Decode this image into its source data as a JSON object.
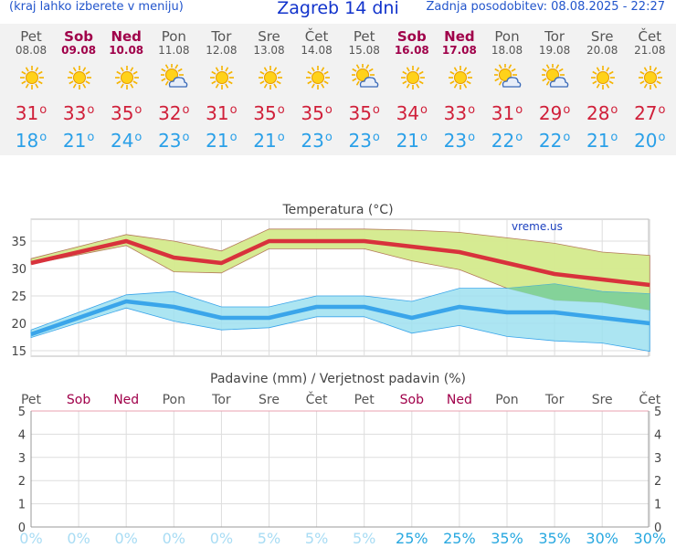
{
  "header": {
    "left_note": "(kraj lahko izberete v meniju)",
    "title": "Zagreb 14 dni",
    "updated": "Zadnja posodobitev: 08.08.2025 - 22:27"
  },
  "colors": {
    "max_line": "#d8323c",
    "min_line": "#3aa5ea",
    "max_band": "#d4ea8c",
    "min_band": "#9ee0f0",
    "overlap_band": "#7ecf8c",
    "weekend": "#a0004a"
  },
  "days": [
    {
      "name": "Pet",
      "date": "08.08",
      "weekend": false,
      "icon": "sun-icon",
      "max": "31",
      "min": "18"
    },
    {
      "name": "Sob",
      "date": "09.08",
      "weekend": true,
      "icon": "sun-icon",
      "max": "33",
      "min": "21"
    },
    {
      "name": "Ned",
      "date": "10.08",
      "weekend": true,
      "icon": "sun-icon",
      "max": "35",
      "min": "24"
    },
    {
      "name": "Pon",
      "date": "11.08",
      "weekend": false,
      "icon": "sun-cloud-icon",
      "max": "32",
      "min": "23"
    },
    {
      "name": "Tor",
      "date": "12.08",
      "weekend": false,
      "icon": "sun-icon",
      "max": "31",
      "min": "21"
    },
    {
      "name": "Sre",
      "date": "13.08",
      "weekend": false,
      "icon": "sun-icon",
      "max": "35",
      "min": "21"
    },
    {
      "name": "Čet",
      "date": "14.08",
      "weekend": false,
      "icon": "sun-icon",
      "max": "35",
      "min": "23"
    },
    {
      "name": "Pet",
      "date": "15.08",
      "weekend": false,
      "icon": "sun-cloud-icon",
      "max": "35",
      "min": "23"
    },
    {
      "name": "Sob",
      "date": "16.08",
      "weekend": true,
      "icon": "sun-icon",
      "max": "34",
      "min": "21"
    },
    {
      "name": "Ned",
      "date": "17.08",
      "weekend": true,
      "icon": "sun-icon",
      "max": "33",
      "min": "23"
    },
    {
      "name": "Pon",
      "date": "18.08",
      "weekend": false,
      "icon": "sun-cloud-icon",
      "max": "31",
      "min": "22"
    },
    {
      "name": "Tor",
      "date": "19.08",
      "weekend": false,
      "icon": "sun-cloud-icon",
      "max": "29",
      "min": "22"
    },
    {
      "name": "Sre",
      "date": "20.08",
      "weekend": false,
      "icon": "sun-icon",
      "max": "28",
      "min": "21"
    },
    {
      "name": "Čet",
      "date": "21.08",
      "weekend": false,
      "icon": "sun-icon",
      "max": "27",
      "min": "20"
    }
  ],
  "chart_data": [
    {
      "type": "line",
      "title": "Temperatura (°C)",
      "watermark": "vreme.us",
      "ylim": [
        14,
        39
      ],
      "yticks": [
        15,
        20,
        25,
        30,
        35
      ],
      "grid": true,
      "series": [
        {
          "values": [
            31,
            35,
            32,
            31,
            35,
            35,
            35,
            34,
            33,
            31,
            29,
            28,
            27
          ],
          "x_index": [
            0,
            2,
            3,
            4,
            5,
            6,
            7,
            8,
            9,
            10,
            11,
            12,
            13
          ]
        },
        {
          "values": [
            18,
            24,
            23,
            21,
            21,
            23,
            23,
            21,
            23,
            22,
            22,
            21,
            20
          ],
          "x_index": [
            0,
            2,
            3,
            4,
            5,
            6,
            7,
            8,
            9,
            10,
            11,
            12,
            13
          ]
        }
      ],
      "max_band_upper": [
        31.8,
        36.2,
        35.0,
        33.2,
        37.2,
        37.2,
        37.2,
        37.0,
        36.6,
        35.6,
        34.6,
        33.0,
        32.4
      ],
      "max_band_lower": [
        30.8,
        34.2,
        29.4,
        29.2,
        33.6,
        33.6,
        33.6,
        31.4,
        29.8,
        26.4,
        24.2,
        23.8,
        22.4
      ],
      "min_band_upper": [
        18.8,
        25.2,
        25.8,
        23.0,
        23.0,
        25.0,
        25.0,
        24.0,
        26.4,
        26.4,
        27.2,
        25.8,
        25.4
      ],
      "min_band_lower": [
        17.4,
        22.8,
        20.4,
        18.8,
        19.2,
        21.2,
        21.2,
        18.2,
        19.6,
        17.6,
        16.8,
        16.4,
        14.9
      ]
    },
    {
      "type": "bar",
      "title": "Padavine (mm) / Verjetnost padavin (%)",
      "categories": [
        "Pet",
        "Sob",
        "Ned",
        "Pon",
        "Tor",
        "Sre",
        "Čet",
        "Pet",
        "Sob",
        "Ned",
        "Pon",
        "Tor",
        "Sre",
        "Čet"
      ],
      "ylim": [
        0,
        5
      ],
      "yticks": [
        0,
        1,
        2,
        3,
        4,
        5
      ],
      "values": [
        0,
        0,
        0,
        0,
        0,
        0,
        0,
        0,
        0,
        0,
        0,
        0,
        0,
        0
      ],
      "probability_labels": [
        "0%",
        "0%",
        "0%",
        "0%",
        "0%",
        "5%",
        "5%",
        "5%",
        "25%",
        "25%",
        "35%",
        "35%",
        "30%",
        "30%"
      ],
      "probability_values": [
        0,
        0,
        0,
        0,
        0,
        5,
        5,
        5,
        25,
        25,
        35,
        35,
        30,
        30
      ]
    }
  ]
}
